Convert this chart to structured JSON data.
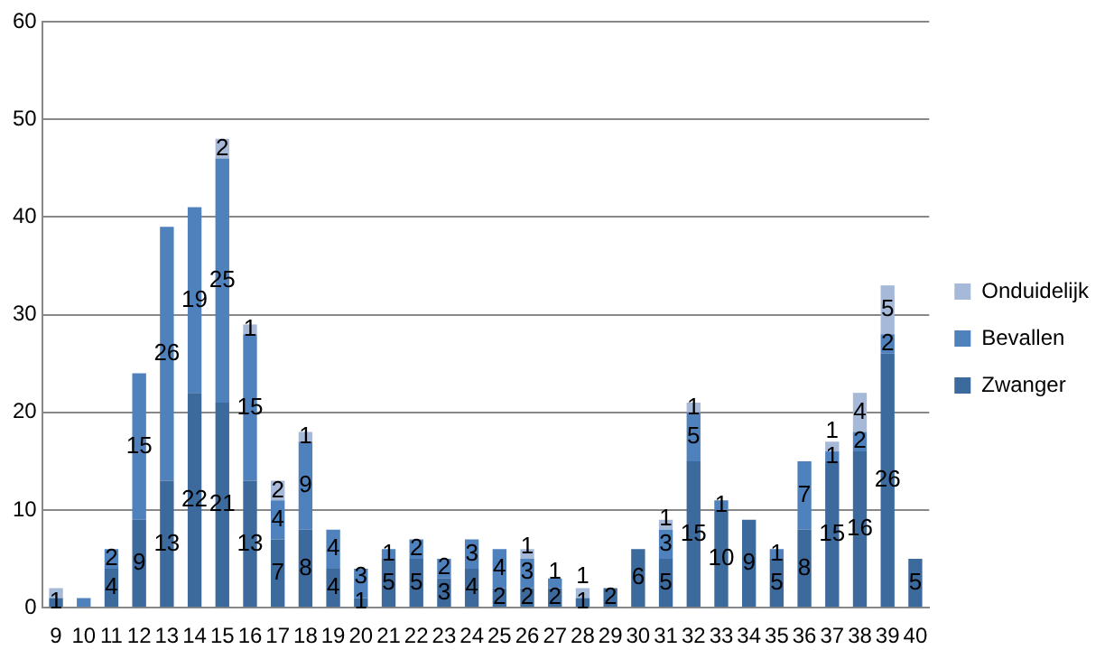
{
  "chart_data": {
    "type": "bar",
    "stacked": true,
    "categories": [
      "9",
      "10",
      "11",
      "12",
      "13",
      "14",
      "15",
      "16",
      "17",
      "18",
      "19",
      "20",
      "21",
      "22",
      "23",
      "24",
      "25",
      "26",
      "27",
      "28",
      "29",
      "30",
      "31",
      "32",
      "33",
      "34",
      "35",
      "36",
      "37",
      "38",
      "39",
      "40"
    ],
    "series": [
      {
        "name": "Zwanger",
        "color": "#3d6a9c",
        "values": [
          1,
          null,
          4,
          9,
          13,
          22,
          21,
          13,
          7,
          8,
          4,
          1,
          5,
          5,
          3,
          4,
          2,
          2,
          2,
          1,
          2,
          6,
          5,
          15,
          10,
          9,
          5,
          8,
          15,
          16,
          26,
          5
        ],
        "value_labels": [
          "1",
          null,
          "4",
          "9",
          "13",
          "22",
          "21",
          "13",
          "7",
          "8",
          "4",
          "1",
          "5",
          "5",
          "3",
          "4",
          "2",
          "2",
          "2",
          "1",
          "2",
          "6",
          "5",
          "15",
          "10",
          "9",
          "5",
          "8",
          "15",
          "16",
          "26",
          "5"
        ]
      },
      {
        "name": "Bevallen",
        "color": "#4f81bd",
        "values": [
          null,
          1,
          2,
          15,
          26,
          19,
          25,
          15,
          4,
          9,
          4,
          3,
          1,
          2,
          2,
          3,
          4,
          3,
          1,
          null,
          null,
          null,
          3,
          5,
          1,
          null,
          1,
          7,
          1,
          2,
          2,
          null
        ],
        "value_labels": [
          null,
          null,
          "2",
          "15",
          "26",
          "19",
          "25",
          "15",
          "4",
          "9",
          "4",
          "3",
          "1",
          "2",
          "2",
          "3",
          "4",
          "3",
          "1",
          null,
          null,
          null,
          "3",
          "5",
          "1",
          null,
          "1",
          "7",
          "1",
          "2",
          "2",
          null
        ]
      },
      {
        "name": "Onduidelijk",
        "color": "#a7b9d8",
        "values": [
          1,
          null,
          null,
          null,
          null,
          null,
          2,
          1,
          2,
          1,
          null,
          null,
          null,
          null,
          null,
          null,
          null,
          1,
          null,
          1,
          null,
          null,
          1,
          1,
          null,
          null,
          null,
          null,
          1,
          4,
          5,
          null
        ],
        "value_labels": [
          null,
          null,
          null,
          null,
          null,
          null,
          "2",
          "1",
          "2",
          "1",
          null,
          null,
          null,
          null,
          null,
          null,
          null,
          "1",
          null,
          "1",
          null,
          null,
          "1",
          "1",
          null,
          null,
          null,
          null,
          "1",
          "4",
          "5",
          null
        ]
      }
    ],
    "ylim": [
      0,
      60
    ],
    "yticks": [
      0,
      10,
      20,
      30,
      40,
      50,
      60
    ],
    "grid": "y",
    "legend": "right"
  }
}
